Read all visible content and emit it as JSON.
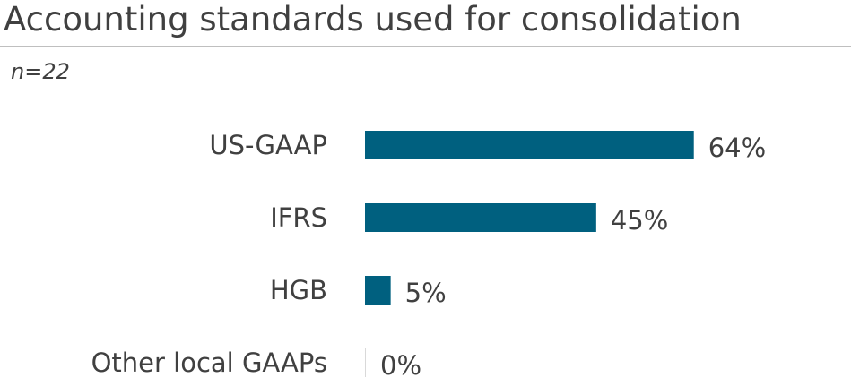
{
  "title": "Accounting standards used for consolidation",
  "note": "n=22",
  "colors": {
    "bar": "#00607f",
    "text": "#404040",
    "rule": "#bfbfbf"
  },
  "chart_data": {
    "type": "bar",
    "orientation": "horizontal",
    "categories": [
      "US-GAAP",
      "IFRS",
      "HGB",
      "Other local GAAPs"
    ],
    "values": [
      64,
      45,
      5,
      0
    ],
    "value_labels": [
      "64%",
      "45%",
      "5%",
      "0%"
    ],
    "unit": "%",
    "xlim": [
      0,
      70
    ],
    "grid": false,
    "legend": "none"
  }
}
